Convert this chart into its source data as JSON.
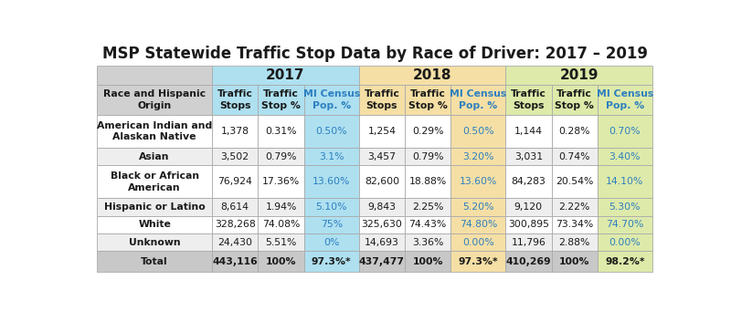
{
  "title": "MSP Statewide Traffic Stop Data by Race of Driver: 2017 – 2019",
  "year_headers": [
    "2017",
    "2018",
    "2019"
  ],
  "col_headers": [
    "Traffic\nStops",
    "Traffic\nStop %",
    "MI Census\nPop. %"
  ],
  "row_header": "Race and Hispanic\nOrigin",
  "rows": [
    {
      "label": "American Indian and\nAlaskan Native",
      "data": [
        "1,378",
        "0.31%",
        "0.50%",
        "1,254",
        "0.29%",
        "0.50%",
        "1,144",
        "0.28%",
        "0.70%"
      ]
    },
    {
      "label": "Asian",
      "data": [
        "3,502",
        "0.79%",
        "3.1%",
        "3,457",
        "0.79%",
        "3.20%",
        "3,031",
        "0.74%",
        "3.40%"
      ]
    },
    {
      "label": "Black or African\nAmerican",
      "data": [
        "76,924",
        "17.36%",
        "13.60%",
        "82,600",
        "18.88%",
        "13.60%",
        "84,283",
        "20.54%",
        "14.10%"
      ]
    },
    {
      "label": "Hispanic or Latino",
      "data": [
        "8,614",
        "1.94%",
        "5.10%",
        "9,843",
        "2.25%",
        "5.20%",
        "9,120",
        "2.22%",
        "5.30%"
      ]
    },
    {
      "label": "White",
      "data": [
        "328,268",
        "74.08%",
        "75%",
        "325,630",
        "74.43%",
        "74.80%",
        "300,895",
        "73.34%",
        "74.70%"
      ]
    },
    {
      "label": "Unknown",
      "data": [
        "24,430",
        "5.51%",
        "0%",
        "14,693",
        "3.36%",
        "0.00%",
        "11,796",
        "2.88%",
        "0.00%"
      ]
    },
    {
      "label": "Total",
      "data": [
        "443,116",
        "100%",
        "97.3%*",
        "437,477",
        "100%",
        "97.3%*",
        "410,269",
        "100%",
        "98.2%*"
      ]
    }
  ],
  "color_year_2017": "#AEE0F0",
  "color_year_2018": "#F5DFA5",
  "color_year_2019": "#DDEAAA",
  "color_header_label_bg": "#D0D0D0",
  "color_row_white": "#FFFFFF",
  "color_row_gray": "#EEEEEE",
  "color_total_row": "#C8C8C8",
  "color_census_text": "#2E7FC0",
  "color_dark_text": "#1A1A1A",
  "color_border": "#AAAAAA",
  "title_fontsize": 12,
  "header_year_fontsize": 11,
  "header_col_fontsize": 7.8,
  "cell_fontsize": 7.8
}
